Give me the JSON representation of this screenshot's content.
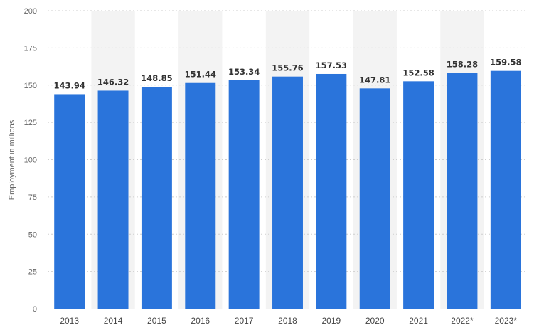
{
  "chart_data": {
    "type": "bar",
    "categories": [
      "2013",
      "2014",
      "2015",
      "2016",
      "2017",
      "2018",
      "2019",
      "2020",
      "2021",
      "2022*",
      "2023*"
    ],
    "values": [
      143.94,
      146.32,
      148.85,
      151.44,
      153.34,
      155.76,
      157.53,
      147.81,
      152.58,
      158.28,
      159.58
    ],
    "data_labels": [
      "143.94",
      "146.32",
      "148.85",
      "151.44",
      "153.34",
      "155.76",
      "157.53",
      "147.81",
      "152.58",
      "158.28",
      "159.58"
    ],
    "ylabel": "Employment in millions",
    "ylim": [
      0,
      200
    ],
    "yticks": [
      "0",
      "25",
      "50",
      "75",
      "100",
      "125",
      "150",
      "175",
      "200"
    ],
    "grid": "horizontal dashed",
    "bar_color": "#2a74db",
    "band_color": "#f3f3f3"
  }
}
